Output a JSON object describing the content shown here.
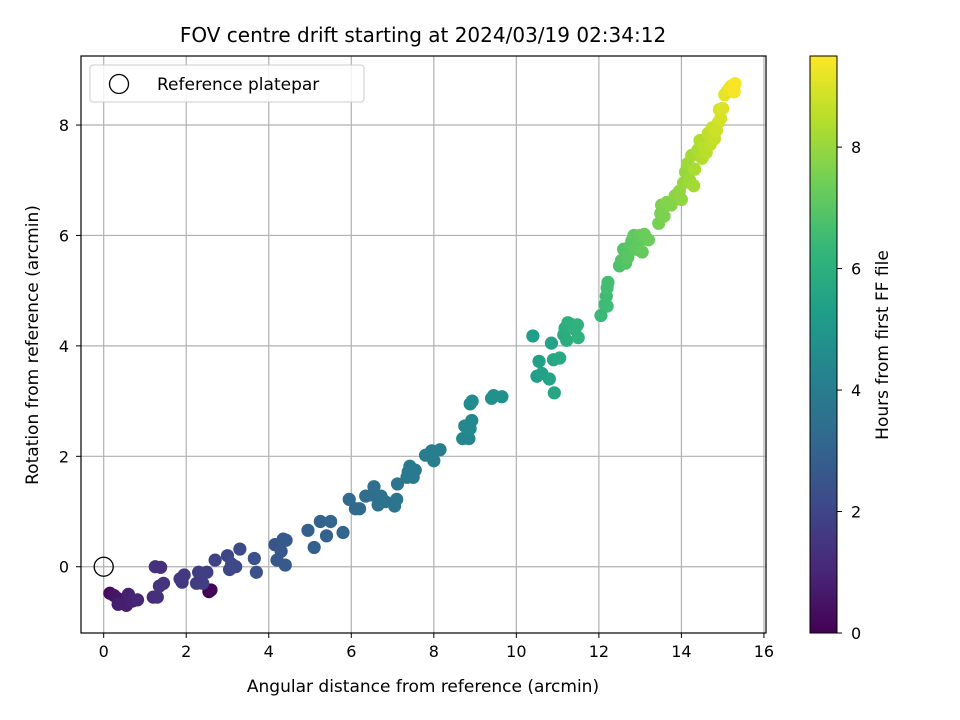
{
  "chart_data": {
    "type": "scatter",
    "title": "FOV centre drift starting at 2024/03/19 02:34:12",
    "xlabel": "Angular distance from reference (arcmin)",
    "ylabel": "Rotation from reference (arcmin)",
    "xlim": [
      -0.55,
      16.05
    ],
    "ylim": [
      -1.2,
      9.25
    ],
    "xticks": [
      0,
      2,
      4,
      6,
      8,
      10,
      12,
      14,
      16
    ],
    "yticks": [
      0,
      2,
      4,
      6,
      8
    ],
    "grid": true,
    "legend": {
      "position": "top-left",
      "entries": [
        {
          "label": "Reference platepar",
          "marker": "open-circle"
        }
      ]
    },
    "reference_point": {
      "x": 0,
      "y": 0
    },
    "colorbar": {
      "label": "Hours from first FF file",
      "min": 0,
      "max": 9.5,
      "ticks": [
        0,
        2,
        4,
        6,
        8
      ],
      "colormap": "viridis",
      "colors": [
        "#440154",
        "#482878",
        "#3e4989",
        "#31688e",
        "#26828e",
        "#1f9e89",
        "#35b779",
        "#6ece58",
        "#b5de2b",
        "#fde725"
      ]
    },
    "points": [
      {
        "x": 2.55,
        "y": -0.45,
        "t": 0.0
      },
      {
        "x": 2.6,
        "y": -0.42,
        "t": 0.1
      },
      {
        "x": 0.15,
        "y": -0.48,
        "t": 0.3
      },
      {
        "x": 0.25,
        "y": -0.52,
        "t": 0.5
      },
      {
        "x": 0.35,
        "y": -0.58,
        "t": 0.6
      },
      {
        "x": 0.45,
        "y": -0.65,
        "t": 0.7
      },
      {
        "x": 0.55,
        "y": -0.7,
        "t": 0.8
      },
      {
        "x": 0.6,
        "y": -0.5,
        "t": 0.9
      },
      {
        "x": 0.7,
        "y": -0.62,
        "t": 0.9
      },
      {
        "x": 0.82,
        "y": -0.6,
        "t": 1.0
      },
      {
        "x": 0.35,
        "y": -0.68,
        "t": 0.8
      },
      {
        "x": 1.2,
        "y": -0.55,
        "t": 1.2
      },
      {
        "x": 1.3,
        "y": -0.55,
        "t": 1.3
      },
      {
        "x": 1.25,
        "y": 0.0,
        "t": 1.3
      },
      {
        "x": 1.38,
        "y": -0.01,
        "t": 1.3
      },
      {
        "x": 1.35,
        "y": -0.35,
        "t": 1.4
      },
      {
        "x": 1.45,
        "y": -0.3,
        "t": 1.4
      },
      {
        "x": 1.85,
        "y": -0.22,
        "t": 1.6
      },
      {
        "x": 1.95,
        "y": -0.15,
        "t": 1.6
      },
      {
        "x": 1.9,
        "y": -0.28,
        "t": 1.6
      },
      {
        "x": 2.3,
        "y": -0.1,
        "t": 1.7
      },
      {
        "x": 2.5,
        "y": -0.1,
        "t": 1.8
      },
      {
        "x": 2.4,
        "y": -0.3,
        "t": 1.8
      },
      {
        "x": 2.25,
        "y": -0.3,
        "t": 1.7
      },
      {
        "x": 2.7,
        "y": 0.12,
        "t": 1.9
      },
      {
        "x": 3.0,
        "y": 0.2,
        "t": 2.0
      },
      {
        "x": 3.05,
        "y": -0.05,
        "t": 2.0
      },
      {
        "x": 3.1,
        "y": 0.05,
        "t": 2.1
      },
      {
        "x": 3.2,
        "y": 0.0,
        "t": 2.1
      },
      {
        "x": 3.3,
        "y": 0.32,
        "t": 2.2
      },
      {
        "x": 3.65,
        "y": 0.15,
        "t": 2.4
      },
      {
        "x": 3.7,
        "y": -0.1,
        "t": 2.4
      },
      {
        "x": 4.15,
        "y": 0.4,
        "t": 2.5
      },
      {
        "x": 4.2,
        "y": 0.12,
        "t": 2.6
      },
      {
        "x": 4.3,
        "y": 0.28,
        "t": 2.6
      },
      {
        "x": 4.35,
        "y": 0.5,
        "t": 2.7
      },
      {
        "x": 4.42,
        "y": 0.48,
        "t": 2.7
      },
      {
        "x": 4.4,
        "y": 0.03,
        "t": 2.7
      },
      {
        "x": 4.95,
        "y": 0.66,
        "t": 2.9
      },
      {
        "x": 5.1,
        "y": 0.35,
        "t": 2.9
      },
      {
        "x": 5.25,
        "y": 0.82,
        "t": 3.0
      },
      {
        "x": 5.4,
        "y": 0.56,
        "t": 3.0
      },
      {
        "x": 5.5,
        "y": 0.82,
        "t": 3.1
      },
      {
        "x": 5.8,
        "y": 0.62,
        "t": 3.1
      },
      {
        "x": 5.95,
        "y": 1.22,
        "t": 3.3
      },
      {
        "x": 6.1,
        "y": 1.05,
        "t": 3.3
      },
      {
        "x": 6.2,
        "y": 1.05,
        "t": 3.3
      },
      {
        "x": 6.35,
        "y": 1.28,
        "t": 3.4
      },
      {
        "x": 6.5,
        "y": 1.3,
        "t": 3.4
      },
      {
        "x": 6.55,
        "y": 1.45,
        "t": 3.5
      },
      {
        "x": 6.65,
        "y": 1.12,
        "t": 3.5
      },
      {
        "x": 6.72,
        "y": 1.28,
        "t": 3.5
      },
      {
        "x": 6.82,
        "y": 1.18,
        "t": 3.6
      },
      {
        "x": 7.05,
        "y": 1.1,
        "t": 3.6
      },
      {
        "x": 7.1,
        "y": 1.22,
        "t": 3.7
      },
      {
        "x": 7.12,
        "y": 1.5,
        "t": 3.7
      },
      {
        "x": 7.35,
        "y": 1.62,
        "t": 3.8
      },
      {
        "x": 7.38,
        "y": 1.72,
        "t": 3.8
      },
      {
        "x": 7.42,
        "y": 1.82,
        "t": 3.9
      },
      {
        "x": 7.5,
        "y": 1.62,
        "t": 3.9
      },
      {
        "x": 7.55,
        "y": 1.75,
        "t": 3.9
      },
      {
        "x": 7.8,
        "y": 2.02,
        "t": 4.0
      },
      {
        "x": 7.95,
        "y": 2.1,
        "t": 4.0
      },
      {
        "x": 8.0,
        "y": 1.92,
        "t": 4.1
      },
      {
        "x": 8.15,
        "y": 2.12,
        "t": 4.1
      },
      {
        "x": 8.7,
        "y": 2.32,
        "t": 4.4
      },
      {
        "x": 8.75,
        "y": 2.55,
        "t": 4.4
      },
      {
        "x": 8.85,
        "y": 2.32,
        "t": 4.4
      },
      {
        "x": 8.88,
        "y": 2.5,
        "t": 4.5
      },
      {
        "x": 8.92,
        "y": 2.65,
        "t": 4.5
      },
      {
        "x": 8.88,
        "y": 2.95,
        "t": 4.5
      },
      {
        "x": 8.93,
        "y": 3.0,
        "t": 4.6
      },
      {
        "x": 9.4,
        "y": 3.05,
        "t": 4.7
      },
      {
        "x": 9.45,
        "y": 3.1,
        "t": 4.8
      },
      {
        "x": 9.65,
        "y": 3.08,
        "t": 4.8
      },
      {
        "x": 10.4,
        "y": 4.18,
        "t": 5.3
      },
      {
        "x": 10.5,
        "y": 3.45,
        "t": 5.3
      },
      {
        "x": 10.55,
        "y": 3.72,
        "t": 5.4
      },
      {
        "x": 10.62,
        "y": 3.5,
        "t": 5.4
      },
      {
        "x": 10.8,
        "y": 3.4,
        "t": 5.5
      },
      {
        "x": 10.85,
        "y": 4.05,
        "t": 5.5
      },
      {
        "x": 10.9,
        "y": 3.75,
        "t": 5.6
      },
      {
        "x": 10.92,
        "y": 3.15,
        "t": 5.6
      },
      {
        "x": 11.05,
        "y": 3.78,
        "t": 5.7
      },
      {
        "x": 11.15,
        "y": 4.2,
        "t": 5.8
      },
      {
        "x": 11.18,
        "y": 4.32,
        "t": 5.9
      },
      {
        "x": 11.22,
        "y": 4.1,
        "t": 5.9
      },
      {
        "x": 11.25,
        "y": 4.42,
        "t": 6.0
      },
      {
        "x": 11.35,
        "y": 4.38,
        "t": 6.0
      },
      {
        "x": 11.42,
        "y": 4.3,
        "t": 6.1
      },
      {
        "x": 11.48,
        "y": 4.38,
        "t": 6.1
      },
      {
        "x": 11.5,
        "y": 4.15,
        "t": 6.1
      },
      {
        "x": 12.05,
        "y": 4.55,
        "t": 6.4
      },
      {
        "x": 12.15,
        "y": 4.75,
        "t": 6.5
      },
      {
        "x": 12.18,
        "y": 4.9,
        "t": 6.5
      },
      {
        "x": 12.2,
        "y": 5.05,
        "t": 6.6
      },
      {
        "x": 12.22,
        "y": 5.15,
        "t": 6.6
      },
      {
        "x": 12.2,
        "y": 4.72,
        "t": 6.5
      },
      {
        "x": 12.5,
        "y": 5.45,
        "t": 6.8
      },
      {
        "x": 12.55,
        "y": 5.55,
        "t": 6.9
      },
      {
        "x": 12.6,
        "y": 5.75,
        "t": 6.9
      },
      {
        "x": 12.65,
        "y": 5.5,
        "t": 6.9
      },
      {
        "x": 12.7,
        "y": 5.6,
        "t": 7.0
      },
      {
        "x": 12.75,
        "y": 5.8,
        "t": 7.0
      },
      {
        "x": 12.8,
        "y": 5.9,
        "t": 7.0
      },
      {
        "x": 12.85,
        "y": 6.0,
        "t": 7.1
      },
      {
        "x": 12.9,
        "y": 5.75,
        "t": 7.1
      },
      {
        "x": 12.95,
        "y": 5.85,
        "t": 7.1
      },
      {
        "x": 13.0,
        "y": 6.0,
        "t": 7.2
      },
      {
        "x": 13.05,
        "y": 5.7,
        "t": 7.2
      },
      {
        "x": 13.1,
        "y": 6.02,
        "t": 7.3
      },
      {
        "x": 13.2,
        "y": 5.92,
        "t": 7.3
      },
      {
        "x": 13.45,
        "y": 6.22,
        "t": 7.5
      },
      {
        "x": 13.5,
        "y": 6.4,
        "t": 7.5
      },
      {
        "x": 13.52,
        "y": 6.55,
        "t": 7.6
      },
      {
        "x": 13.58,
        "y": 6.35,
        "t": 7.6
      },
      {
        "x": 13.65,
        "y": 6.6,
        "t": 7.7
      },
      {
        "x": 13.75,
        "y": 6.55,
        "t": 7.7
      },
      {
        "x": 13.85,
        "y": 6.72,
        "t": 7.8
      },
      {
        "x": 13.95,
        "y": 6.8,
        "t": 7.9
      },
      {
        "x": 14.0,
        "y": 6.65,
        "t": 7.9
      },
      {
        "x": 14.05,
        "y": 6.95,
        "t": 8.0
      },
      {
        "x": 14.1,
        "y": 7.15,
        "t": 8.0
      },
      {
        "x": 14.15,
        "y": 7.3,
        "t": 8.1
      },
      {
        "x": 14.2,
        "y": 7.0,
        "t": 8.1
      },
      {
        "x": 14.25,
        "y": 7.45,
        "t": 8.2
      },
      {
        "x": 14.3,
        "y": 6.9,
        "t": 8.2
      },
      {
        "x": 14.32,
        "y": 7.2,
        "t": 8.3
      },
      {
        "x": 14.4,
        "y": 7.55,
        "t": 8.3
      },
      {
        "x": 14.45,
        "y": 7.72,
        "t": 8.4
      },
      {
        "x": 14.5,
        "y": 7.4,
        "t": 8.4
      },
      {
        "x": 14.55,
        "y": 7.6,
        "t": 8.5
      },
      {
        "x": 14.6,
        "y": 7.5,
        "t": 8.5
      },
      {
        "x": 14.65,
        "y": 7.85,
        "t": 8.6
      },
      {
        "x": 14.7,
        "y": 7.65,
        "t": 8.6
      },
      {
        "x": 14.75,
        "y": 7.95,
        "t": 8.7
      },
      {
        "x": 14.8,
        "y": 7.75,
        "t": 8.7
      },
      {
        "x": 14.85,
        "y": 7.9,
        "t": 8.8
      },
      {
        "x": 14.9,
        "y": 8.05,
        "t": 8.8
      },
      {
        "x": 14.92,
        "y": 8.28,
        "t": 8.9
      },
      {
        "x": 14.95,
        "y": 8.12,
        "t": 8.9
      },
      {
        "x": 15.0,
        "y": 8.3,
        "t": 9.0
      },
      {
        "x": 15.05,
        "y": 8.55,
        "t": 9.1
      },
      {
        "x": 15.1,
        "y": 8.6,
        "t": 9.1
      },
      {
        "x": 15.15,
        "y": 8.65,
        "t": 9.2
      },
      {
        "x": 15.2,
        "y": 8.7,
        "t": 9.3
      },
      {
        "x": 15.25,
        "y": 8.72,
        "t": 9.3
      },
      {
        "x": 15.28,
        "y": 8.6,
        "t": 9.4
      },
      {
        "x": 15.3,
        "y": 8.75,
        "t": 9.4
      }
    ]
  }
}
